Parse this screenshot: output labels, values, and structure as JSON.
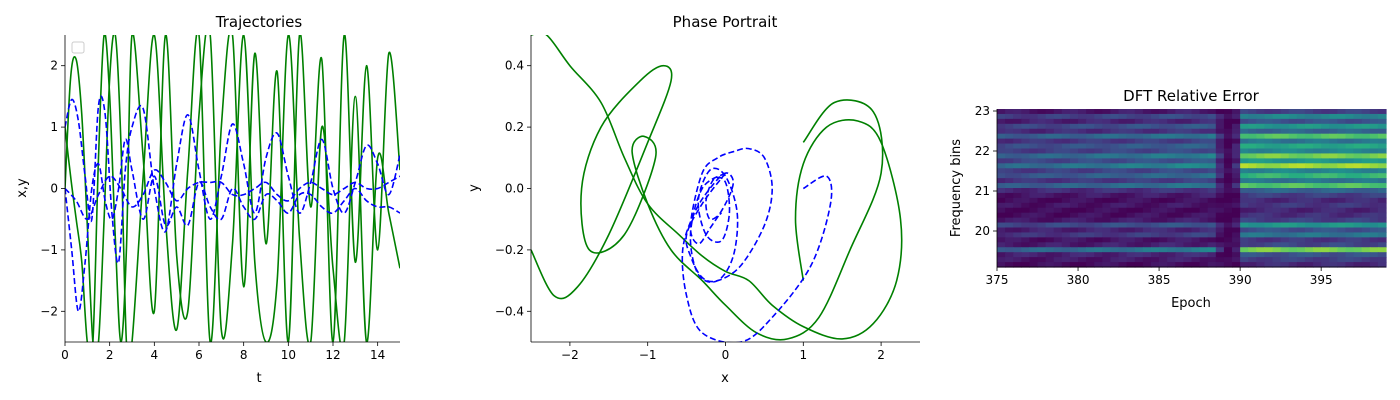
{
  "chart_data": [
    {
      "type": "line",
      "title": "Trajectories",
      "xlabel": "t",
      "ylabel": "x,y",
      "xlim": [
        0,
        15
      ],
      "ylim": [
        -2.5,
        2.5
      ],
      "xticks": [
        "0",
        "2",
        "4",
        "6",
        "8",
        "10",
        "12",
        "14"
      ],
      "yticks": [
        "−2",
        "−1",
        "0",
        "1",
        "2"
      ],
      "legend": "top-left, empty",
      "series": [
        {
          "style": "solid",
          "color": "#008000",
          "x": [
            0,
            0.25,
            0.5,
            0.75,
            1.0,
            1.25,
            1.5,
            1.75,
            2.0,
            2.25,
            2.5,
            2.75,
            3.0,
            3.5,
            4.0,
            4.5,
            5.0,
            5.5,
            6.0,
            6.5,
            7.0,
            7.5,
            8.0,
            8.5,
            9.0,
            9.5,
            10.0,
            10.5,
            11.0,
            11.5,
            12.0,
            12.5,
            13.0,
            13.5,
            14.0,
            14.5,
            15.0
          ],
          "y": [
            0.0,
            1.8,
            2.1,
            1.2,
            -0.6,
            -2.5,
            -2.5,
            -0.5,
            1.8,
            2.5,
            0.8,
            -2.5,
            -2.5,
            0.2,
            2.5,
            -0.5,
            -2.3,
            0.3,
            2.5,
            -2.5,
            1.0,
            2.5,
            -1.6,
            2.2,
            -0.9,
            1.9,
            -2.5,
            2.5,
            -0.3,
            2.1,
            -2.5,
            2.5,
            -1.2,
            2.0,
            -1.0,
            2.2,
            0.3
          ]
        },
        {
          "style": "solid",
          "color": "#008000",
          "x": [
            0,
            0.25,
            0.5,
            0.75,
            1.0,
            1.25,
            1.5,
            1.75,
            2.0,
            2.25,
            2.5,
            2.75,
            3.0,
            3.5,
            4.0,
            4.5,
            5.0,
            5.5,
            6.0,
            6.5,
            7.0,
            7.5,
            8.0,
            8.5,
            9.0,
            9.5,
            10.0,
            10.5,
            11.0,
            11.5,
            12.0,
            12.5,
            13.0,
            13.5,
            14.0,
            14.5,
            15.0
          ],
          "y": [
            1.0,
            0.2,
            -0.5,
            -1.2,
            -2.5,
            -2.5,
            0.5,
            2.5,
            1.5,
            -0.8,
            -2.5,
            -1.0,
            2.5,
            0.5,
            -2.0,
            2.5,
            -1.1,
            -2.0,
            1.2,
            2.5,
            -2.3,
            -0.9,
            2.5,
            -1.2,
            -2.5,
            -1.5,
            2.5,
            -0.8,
            -2.5,
            1.0,
            -1.3,
            -2.5,
            1.5,
            -2.5,
            0.5,
            -0.4,
            -1.3
          ]
        },
        {
          "style": "dashed",
          "color": "#0000ff",
          "x": [
            0,
            0.3,
            0.6,
            0.9,
            1.2,
            1.5,
            1.8,
            2.1,
            2.4,
            2.7,
            3.0,
            3.5,
            4.0,
            4.5,
            5.0,
            5.5,
            6.0,
            6.5,
            7.0,
            7.5,
            8.0,
            8.5,
            9.0,
            9.5,
            10.0,
            10.5,
            11.0,
            11.5,
            12.0,
            12.5,
            13.0,
            13.5,
            14.0,
            14.5,
            15.0
          ],
          "y": [
            1.0,
            1.45,
            1.1,
            0.2,
            -0.5,
            1.35,
            1.2,
            -0.4,
            -1.2,
            0.3,
            1.0,
            1.3,
            0.0,
            -0.7,
            0.4,
            1.2,
            0.3,
            -0.5,
            0.2,
            1.05,
            0.4,
            -0.4,
            0.5,
            0.9,
            0.2,
            -0.4,
            0.1,
            0.8,
            0.0,
            -0.4,
            0.1,
            0.7,
            0.4,
            -0.1,
            0.55
          ]
        },
        {
          "style": "dashed",
          "color": "#0000ff",
          "x": [
            0,
            0.3,
            0.6,
            0.9,
            1.2,
            1.5,
            1.8,
            2.1,
            2.4,
            2.7,
            3.0,
            3.5,
            4.0,
            4.5,
            5.0,
            5.5,
            6.0,
            6.5,
            7.0,
            7.5,
            8.0,
            8.5,
            9.0,
            9.5,
            10.0,
            10.5,
            11.0,
            11.5,
            12.0,
            12.5,
            13.0,
            13.5,
            14.0,
            14.5,
            15.0
          ],
          "y": [
            0.0,
            -1.0,
            -2.0,
            -1.2,
            0.0,
            0.4,
            -0.2,
            -0.5,
            0.0,
            0.8,
            0.3,
            -0.5,
            0.2,
            -0.6,
            -0.3,
            -0.6,
            0.1,
            -0.3,
            -0.5,
            0.0,
            -0.3,
            -0.5,
            -0.1,
            -0.2,
            -0.4,
            -0.1,
            -0.1,
            -0.3,
            -0.4,
            -0.2,
            0.0,
            -0.2,
            -0.3,
            -0.3,
            -0.4
          ]
        },
        {
          "style": "dashed",
          "color": "#0000ff",
          "x": [
            0,
            0.5,
            1.0,
            1.5,
            2.0,
            2.5,
            3.0,
            3.5,
            4.0,
            4.5,
            5.0,
            5.5,
            6.0,
            6.5,
            7.0,
            7.5,
            8.0,
            8.5,
            9.0,
            9.5,
            10.0,
            10.5,
            11.0,
            11.5,
            12.0,
            12.5,
            13.0,
            13.5,
            14.0,
            14.5,
            15.0
          ],
          "y": [
            0.0,
            -0.2,
            -0.5,
            -0.1,
            0.2,
            0.0,
            -0.3,
            -0.1,
            0.3,
            0.1,
            -0.2,
            0.0,
            0.1,
            0.1,
            0.1,
            -0.1,
            -0.1,
            0.0,
            0.1,
            -0.1,
            -0.2,
            0.0,
            0.1,
            0.0,
            -0.1,
            0.0,
            0.1,
            0.0,
            0.0,
            0.1,
            0.2
          ]
        }
      ]
    },
    {
      "type": "line",
      "title": "Phase Portrait",
      "xlabel": "x",
      "ylabel": "y",
      "xlim": [
        -2.5,
        2.5
      ],
      "ylim": [
        -0.5,
        0.5
      ],
      "xticks": [
        "−2",
        "−1",
        "0",
        "1",
        "2"
      ],
      "yticks": [
        "−0.4",
        "−0.2",
        "0.0",
        "0.2",
        "0.4"
      ],
      "series": [
        {
          "style": "solid",
          "color": "#008000",
          "x": [
            1.0,
            1.4,
            1.9,
            2.0,
            1.6,
            1.2,
            0.8,
            0.4,
            0.0,
            -0.3,
            -0.7,
            -1.0,
            -1.2,
            -1.05,
            -0.9,
            -1.3,
            -1.75,
            -1.85,
            -1.6,
            -1.1,
            -0.8,
            -0.7,
            -1.0,
            -1.5,
            -1.9,
            -2.2,
            -2.5
          ],
          "y": [
            0.15,
            0.28,
            0.25,
            0.05,
            -0.2,
            -0.42,
            -0.49,
            -0.47,
            -0.38,
            -0.3,
            -0.2,
            -0.05,
            0.12,
            0.17,
            0.1,
            -0.15,
            -0.2,
            0.0,
            0.2,
            0.35,
            0.4,
            0.35,
            0.15,
            -0.15,
            -0.32,
            -0.35,
            -0.2
          ]
        },
        {
          "style": "solid",
          "color": "#008000",
          "x": [
            1.0,
            0.9,
            1.0,
            1.3,
            1.7,
            2.0,
            2.25,
            2.2,
            1.9,
            1.5,
            1.0,
            0.6,
            0.3,
            0.0,
            -0.3,
            -0.6,
            -1.0,
            -1.3,
            -1.6,
            -2.0,
            -2.3,
            -2.5
          ],
          "y": [
            -0.3,
            -0.1,
            0.08,
            0.2,
            0.22,
            0.15,
            -0.1,
            -0.3,
            -0.44,
            -0.49,
            -0.45,
            -0.38,
            -0.3,
            -0.27,
            -0.22,
            -0.15,
            -0.05,
            0.1,
            0.28,
            0.4,
            0.5,
            0.5
          ]
        },
        {
          "style": "dashed",
          "color": "#0000ff",
          "x": [
            1.0,
            1.3,
            1.35,
            1.1,
            0.6,
            0.2,
            -0.3,
            -0.5,
            -0.55,
            -0.4,
            -0.2,
            0.0,
            0.1,
            0.0,
            -0.2,
            -0.35,
            -0.45,
            -0.3,
            -0.1,
            0.1,
            0.3,
            0.5,
            0.6,
            0.5,
            0.2,
            -0.1,
            -0.3,
            -0.45,
            -0.5,
            -0.3,
            0.0
          ],
          "y": [
            0.0,
            0.04,
            -0.05,
            -0.25,
            -0.42,
            -0.5,
            -0.47,
            -0.35,
            -0.2,
            -0.08,
            0.0,
            0.05,
            0.02,
            -0.05,
            -0.13,
            -0.18,
            -0.12,
            0.05,
            0.1,
            0.12,
            0.13,
            0.1,
            0.0,
            -0.12,
            -0.25,
            -0.3,
            -0.29,
            -0.22,
            -0.15,
            -0.05,
            0.05
          ]
        },
        {
          "style": "dashed",
          "color": "#0000ff",
          "x": [
            0.0,
            -0.3,
            -0.45,
            -0.35,
            -0.1,
            0.1,
            0.15,
            0.0,
            -0.2,
            -0.35,
            -0.25,
            -0.05,
            0.05,
            0.0,
            -0.15,
            -0.25,
            -0.2,
            -0.05
          ],
          "y": [
            0.05,
            0.0,
            -0.15,
            -0.28,
            -0.3,
            -0.22,
            -0.08,
            0.04,
            0.06,
            -0.04,
            -0.15,
            -0.17,
            -0.08,
            0.02,
            0.03,
            -0.04,
            -0.1,
            -0.08
          ]
        }
      ]
    },
    {
      "type": "heatmap",
      "title": "DFT Relative Error",
      "xlabel": "Epoch",
      "ylabel": "Frequency bins",
      "xlim": [
        375,
        399
      ],
      "ylim": [
        19.1,
        23.05
      ],
      "xticks": [
        "375",
        "380",
        "385",
        "390",
        "395"
      ],
      "yticks": [
        "20",
        "21",
        "22",
        "23"
      ],
      "colormap": "viridis",
      "rows": [
        {
          "level": 0.1
        },
        {
          "level": 0.3
        },
        {
          "level": 0.15
        },
        {
          "level": 0.35
        },
        {
          "level": 0.2
        },
        {
          "level": 0.5
        },
        {
          "level": 0.25
        },
        {
          "level": 0.4
        },
        {
          "level": 0.3
        },
        {
          "level": 0.55
        },
        {
          "level": 0.35
        },
        {
          "level": 0.6
        },
        {
          "level": 0.3
        },
        {
          "level": 0.45
        },
        {
          "level": 0.25
        },
        {
          "level": 0.5
        },
        {
          "level": 0.2
        },
        {
          "level": 0.1
        },
        {
          "level": 0.05
        },
        {
          "level": 0.08
        },
        {
          "level": 0.04
        },
        {
          "level": 0.06
        },
        {
          "level": 0.1
        },
        {
          "level": 0.35
        },
        {
          "level": 0.15
        },
        {
          "level": 0.25
        },
        {
          "level": 0.08
        },
        {
          "level": 0.12
        },
        {
          "level": 0.55
        },
        {
          "level": 0.15
        },
        {
          "level": 0.1
        },
        {
          "level": 0.05
        }
      ],
      "dark_column_epoch": 389.3,
      "bright_epoch_range": [
        390,
        399
      ]
    }
  ]
}
